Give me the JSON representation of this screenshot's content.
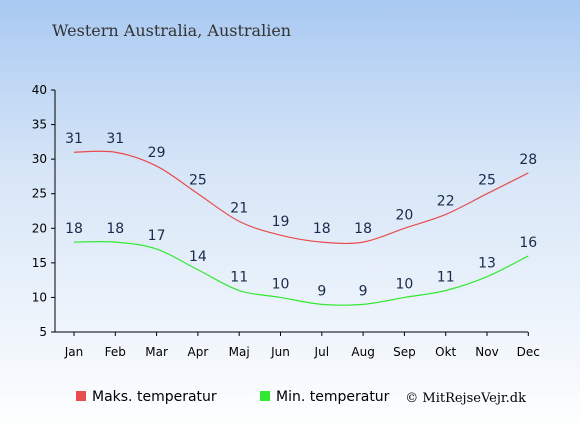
{
  "chart_data": {
    "type": "line",
    "title": "Western Australia, Australien",
    "categories": [
      "Jan",
      "Feb",
      "Mar",
      "Apr",
      "Maj",
      "Jun",
      "Jul",
      "Aug",
      "Sep",
      "Okt",
      "Nov",
      "Dec"
    ],
    "yticks": [
      5,
      10,
      15,
      20,
      25,
      30,
      35,
      40
    ],
    "ylim": [
      5,
      40
    ],
    "grid": false,
    "legend_position": "bottom-left",
    "series": [
      {
        "name": "Maks. temperatur",
        "color": "#e84c4c",
        "values": [
          31,
          31,
          29,
          25,
          21,
          19,
          18,
          18,
          20,
          22,
          25,
          28
        ]
      },
      {
        "name": "Min. temperatur",
        "color": "#33e833",
        "values": [
          18,
          18,
          17,
          14,
          11,
          10,
          9,
          9,
          10,
          11,
          13,
          16
        ]
      }
    ],
    "credit": "© MitRejseVejr.dk"
  }
}
